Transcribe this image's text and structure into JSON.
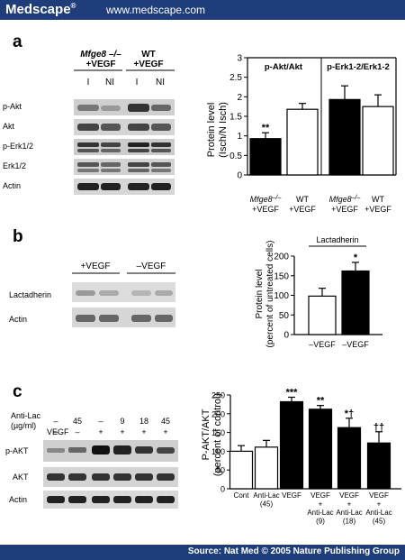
{
  "header": {
    "brand": "Medscape",
    "reg": "®",
    "url": "www.medscape.com"
  },
  "footer": {
    "source": "Source: Nat Med © 2005 Nature Publishing Group"
  },
  "panel_a": {
    "letter": "a",
    "blot": {
      "group1": [
        "Mfge8 –/–",
        "+VEGF"
      ],
      "group2": [
        "WT",
        "+VEGF"
      ],
      "lanes": [
        "I",
        "NI",
        "I",
        "NI"
      ],
      "rows": [
        "p-Akt",
        "Akt",
        "p-Erk1/2",
        "Erk1/2",
        "Actin"
      ]
    }
  },
  "panel_b": {
    "letter": "b",
    "blot": {
      "groups": [
        "+VEGF",
        "–VEGF"
      ],
      "rows": [
        "Lactadherin",
        "Actin"
      ]
    }
  },
  "panel_c": {
    "letter": "c",
    "blot": {
      "row_labels": [
        "Anti-Lac",
        "(µg/ml)",
        "VEGF"
      ],
      "anti_lac": [
        "–",
        "45",
        "–",
        "9",
        "18",
        "45"
      ],
      "vegf": [
        "–",
        "–",
        "+",
        "+",
        "+",
        "+"
      ],
      "rows": [
        "p-AKT",
        "AKT",
        "Actin"
      ]
    }
  },
  "chart_data": [
    {
      "type": "bar",
      "ylabel": "Protein level (Isch/N Isch)",
      "ylim": [
        0,
        3
      ],
      "yticks": [
        "0",
        "0.5",
        "1",
        "1.5",
        "2",
        "2.5",
        "3"
      ],
      "groups": [
        "p-Akt/Akt",
        "p-Erk1-2/Erk1-2"
      ],
      "categories": [
        "Mfge8–/– +VEGF",
        "WT +VEGF",
        "Mfge8–/– +VEGF",
        "WT +VEGF"
      ],
      "values": [
        0.93,
        1.68,
        1.93,
        1.75
      ],
      "errors": [
        0.15,
        0.15,
        0.35,
        0.3
      ],
      "fills": [
        "#000000",
        "#ffffff",
        "#000000",
        "#ffffff"
      ],
      "annotations": [
        "**",
        "",
        "",
        ""
      ]
    },
    {
      "type": "bar",
      "title": "Lactadherin",
      "ylabel": "Protein level (percent of untreated cells)",
      "ylim": [
        0,
        200
      ],
      "yticks": [
        "0",
        "50",
        "100",
        "150",
        "200"
      ],
      "categories": [
        "–VEGF",
        "–VEGF"
      ],
      "values": [
        98,
        162
      ],
      "errors": [
        20,
        22
      ],
      "fills": [
        "#ffffff",
        "#000000"
      ],
      "annotations": [
        "",
        "*"
      ]
    },
    {
      "type": "bar",
      "ylabel": "P-AKT/AKT (percent of control)",
      "ylim": [
        0,
        250
      ],
      "yticks": [
        "0",
        "50",
        "100",
        "150",
        "200",
        "250"
      ],
      "categories": [
        "Cont",
        "Anti-Lac (45)",
        "VEGF",
        "VEGF + Anti-Lac (9)",
        "VEGF + Anti-Lac (18)",
        "VEGF + Anti-Lac (45)"
      ],
      "values": [
        100,
        111,
        232,
        212,
        163,
        122
      ],
      "errors": [
        15,
        18,
        12,
        10,
        25,
        30
      ],
      "fills": [
        "#ffffff",
        "#ffffff",
        "#000000",
        "#000000",
        "#000000",
        "#000000"
      ],
      "annotations": [
        "",
        "",
        "***",
        "**",
        "*†",
        "††"
      ]
    }
  ]
}
